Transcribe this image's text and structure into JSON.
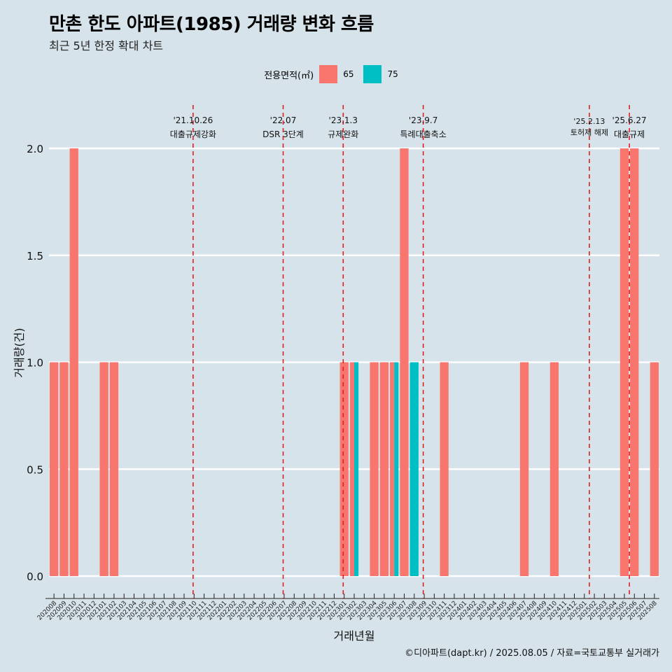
{
  "title": "만촌 한도 아파트(1985) 거래량 변화 흐름",
  "subtitle": "최근 5년 한정 확대 차트",
  "caption": "©디아파트(dapt.kr) / 2025.08.05 / 자료=국토교통부 실거래가",
  "legend": {
    "title": "전용면적(㎡)",
    "entries": [
      {
        "label": "65",
        "color": "#f8766d"
      },
      {
        "label": "75",
        "color": "#00bfc4"
      }
    ]
  },
  "chart_data": {
    "type": "bar",
    "xlabel": "거래년월",
    "ylabel": "거래량(건)",
    "ylim": [
      0,
      2.0
    ],
    "yticks": [
      "0.0",
      "0.5",
      "1.0",
      "1.5",
      "2.0"
    ],
    "grid": "horizontal",
    "categories": [
      "202008",
      "202009",
      "202010",
      "202011",
      "202012",
      "202101",
      "202102",
      "202103",
      "202104",
      "202105",
      "202106",
      "202107",
      "202108",
      "202109",
      "202110",
      "202111",
      "202112",
      "202201",
      "202202",
      "202203",
      "202204",
      "202205",
      "202206",
      "202207",
      "202208",
      "202209",
      "202210",
      "202211",
      "202212",
      "202301",
      "202302",
      "202303",
      "202304",
      "202305",
      "202306",
      "202307",
      "202308",
      "202309",
      "202310",
      "202311",
      "202312",
      "202401",
      "202402",
      "202403",
      "202404",
      "202405",
      "202406",
      "202407",
      "202408",
      "202409",
      "202410",
      "202411",
      "202412",
      "202501",
      "202502",
      "202503",
      "202504",
      "202505",
      "202506",
      "202507",
      "202508"
    ],
    "series": [
      {
        "name": "65",
        "color": "#f8766d",
        "values": [
          1,
          1,
          2,
          0,
          0,
          1,
          1,
          0,
          0,
          0,
          0,
          0,
          0,
          0,
          0,
          0,
          0,
          0,
          0,
          0,
          0,
          0,
          0,
          0,
          0,
          0,
          0,
          0,
          0,
          1,
          1,
          0,
          1,
          1,
          1,
          2,
          0,
          0,
          0,
          1,
          0,
          0,
          0,
          0,
          0,
          0,
          0,
          1,
          0,
          0,
          1,
          0,
          0,
          0,
          0,
          0,
          0,
          2,
          2,
          0,
          1
        ]
      },
      {
        "name": "75",
        "color": "#00bfc4",
        "values": [
          0,
          0,
          0,
          0,
          0,
          0,
          0,
          0,
          0,
          0,
          0,
          0,
          0,
          0,
          0,
          0,
          0,
          0,
          0,
          0,
          0,
          0,
          0,
          0,
          0,
          0,
          0,
          0,
          0,
          0,
          1,
          0,
          0,
          0,
          1,
          0,
          1,
          0,
          0,
          0,
          0,
          0,
          0,
          0,
          0,
          0,
          0,
          0,
          0,
          0,
          0,
          0,
          0,
          0,
          0,
          0,
          0,
          0,
          0,
          0,
          0
        ]
      }
    ],
    "annotations": [
      {
        "date": "'21.10.26",
        "text": "대출규제강화",
        "x": 14.4
      },
      {
        "date": "'22.07",
        "text": "DSR 3단계",
        "x": 23.4
      },
      {
        "date": "'23.1.3",
        "text": "규제완화",
        "x": 29.4
      },
      {
        "date": "'23.9.7",
        "text": "특례대출축소",
        "x": 37.4
      },
      {
        "date": "'25.2.13",
        "text": "토허제 해제",
        "x": 54.0
      },
      {
        "date": "'25.6.27",
        "text": "대출규제",
        "x": 58.0
      }
    ]
  }
}
